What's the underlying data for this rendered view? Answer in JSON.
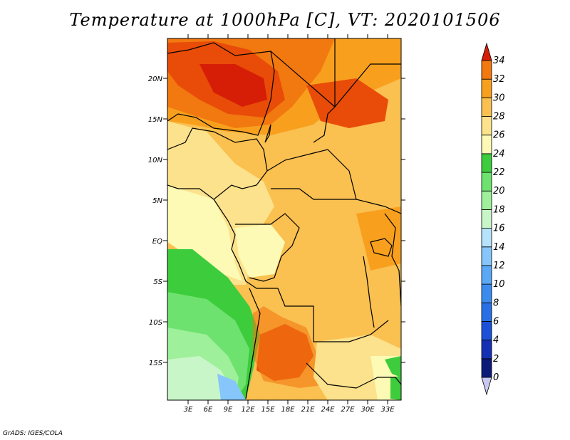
{
  "title": "Temperature at 1000hPa [C], VT: 2020101506",
  "credit": "GrADS: IGES/COLA",
  "map": {
    "lat_labels": [
      "20N",
      "15N",
      "10N",
      "5N",
      "EQ",
      "5S",
      "10S",
      "15S"
    ],
    "lon_labels": [
      "3E",
      "6E",
      "9E",
      "12E",
      "15E",
      "18E",
      "21E",
      "24E",
      "27E",
      "30E",
      "33E"
    ]
  },
  "colorbar": {
    "labels": [
      "0",
      "2",
      "4",
      "6",
      "8",
      "10",
      "12",
      "14",
      "16",
      "18",
      "20",
      "22",
      "24",
      "26",
      "28",
      "30",
      "32",
      "34"
    ],
    "colors": [
      "#0c1a78",
      "#1630b4",
      "#1c50d8",
      "#2a6fe6",
      "#3c8cf0",
      "#5aa8f6",
      "#86c6fa",
      "#b6e2fc",
      "#c8f6c8",
      "#9ef09a",
      "#6ee26e",
      "#3ccc3c",
      "#fcfab4",
      "#fce28c",
      "#fac050",
      "#f8a01e",
      "#f27810",
      "#e84c08",
      "#d61e06"
    ]
  }
}
